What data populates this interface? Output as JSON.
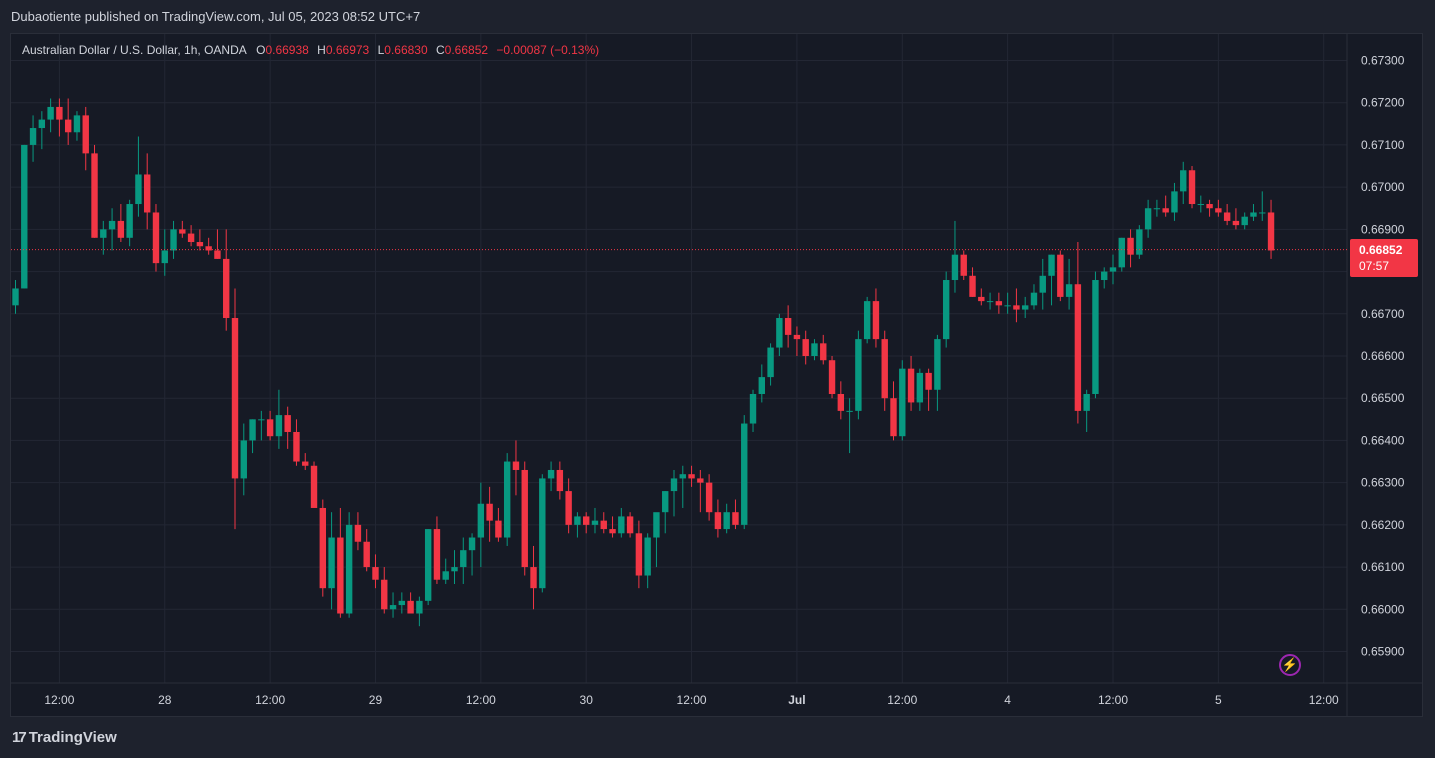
{
  "header": {
    "published": "Dubaotiente published on TradingView.com, Jul 05, 2023 08:52 UTC+7"
  },
  "legend": {
    "symbol": "Australian Dollar / U.S. Dollar, 1h, OANDA",
    "o_label": "O",
    "o": "0.66938",
    "h_label": "H",
    "h": "0.66973",
    "l_label": "L",
    "l": "0.66830",
    "c_label": "C",
    "c": "0.66852",
    "change": "−0.00087 (−0.13%)"
  },
  "price_tag": {
    "price": "0.66852",
    "countdown": "07:57"
  },
  "brand": {
    "logo": "17",
    "name": "TradingView"
  },
  "colors": {
    "up": "#089981",
    "down": "#f23645",
    "grid": "#232734",
    "axis_text": "#d1d4dc"
  },
  "icons": [
    "lightning-icon",
    "tradingview-logo-icon"
  ],
  "chart_data": {
    "type": "candlestick",
    "symbol": "AUDUSD",
    "timeframe": "1h",
    "y_ticks": [
      0.673,
      0.672,
      0.671,
      0.67,
      0.669,
      0.668,
      0.667,
      0.666,
      0.665,
      0.664,
      0.663,
      0.662,
      0.661,
      0.66,
      0.659
    ],
    "y_tick_labels": [
      "0.67300",
      "0.67200",
      "0.67100",
      "0.67000",
      "0.66900",
      "0.66800",
      "0.66700",
      "0.66600",
      "0.66500",
      "0.66400",
      "0.66300",
      "0.66200",
      "0.66100",
      "0.66000",
      "0.65900"
    ],
    "ylim": [
      0.6586,
      0.6741
    ],
    "x_ticks": [
      {
        "index": 5,
        "label": "12:00",
        "bold": false
      },
      {
        "index": 17,
        "label": "28",
        "bold": false
      },
      {
        "index": 29,
        "label": "12:00",
        "bold": false
      },
      {
        "index": 41,
        "label": "29",
        "bold": false
      },
      {
        "index": 53,
        "label": "12:00",
        "bold": false
      },
      {
        "index": 65,
        "label": "30",
        "bold": false
      },
      {
        "index": 77,
        "label": "12:00",
        "bold": false
      },
      {
        "index": 89,
        "label": "Jul",
        "bold": true
      },
      {
        "index": 101,
        "label": "12:00",
        "bold": false
      },
      {
        "index": 113,
        "label": "4",
        "bold": false
      },
      {
        "index": 125,
        "label": "12:00",
        "bold": false
      },
      {
        "index": 137,
        "label": "5",
        "bold": false
      },
      {
        "index": 149,
        "label": "12:00",
        "bold": false
      }
    ],
    "last_price": 0.66852,
    "candles": [
      [
        0.6672,
        0.6678,
        0.667,
        0.6676
      ],
      [
        0.6676,
        0.671,
        0.6676,
        0.671
      ],
      [
        0.671,
        0.6717,
        0.6706,
        0.6714
      ],
      [
        0.6714,
        0.6718,
        0.6709,
        0.6716
      ],
      [
        0.6716,
        0.6721,
        0.6713,
        0.6719
      ],
      [
        0.6719,
        0.6721,
        0.6712,
        0.6716
      ],
      [
        0.6716,
        0.6721,
        0.671,
        0.6713
      ],
      [
        0.6713,
        0.6718,
        0.6711,
        0.6717
      ],
      [
        0.6717,
        0.6719,
        0.6704,
        0.6708
      ],
      [
        0.6708,
        0.671,
        0.6688,
        0.6688
      ],
      [
        0.6688,
        0.6692,
        0.6684,
        0.669
      ],
      [
        0.669,
        0.6695,
        0.6685,
        0.6692
      ],
      [
        0.6692,
        0.6696,
        0.6687,
        0.6688
      ],
      [
        0.6688,
        0.6697,
        0.6686,
        0.6696
      ],
      [
        0.6696,
        0.6712,
        0.6693,
        0.6703
      ],
      [
        0.6703,
        0.6708,
        0.669,
        0.6694
      ],
      [
        0.6694,
        0.6696,
        0.668,
        0.6682
      ],
      [
        0.6682,
        0.669,
        0.6679,
        0.6685
      ],
      [
        0.6685,
        0.6692,
        0.6683,
        0.669
      ],
      [
        0.669,
        0.6692,
        0.6688,
        0.6689
      ],
      [
        0.6689,
        0.6691,
        0.6686,
        0.6687
      ],
      [
        0.6687,
        0.669,
        0.6685,
        0.6686
      ],
      [
        0.6686,
        0.6688,
        0.6684,
        0.6685
      ],
      [
        0.6685,
        0.669,
        0.6683,
        0.6683
      ],
      [
        0.6683,
        0.669,
        0.6666,
        0.6669
      ],
      [
        0.6669,
        0.6676,
        0.6619,
        0.6631
      ],
      [
        0.6631,
        0.6644,
        0.6627,
        0.664
      ],
      [
        0.664,
        0.6645,
        0.6637,
        0.6645
      ],
      [
        0.6645,
        0.6647,
        0.664,
        0.6645
      ],
      [
        0.6645,
        0.6647,
        0.664,
        0.6641
      ],
      [
        0.6641,
        0.6652,
        0.6638,
        0.6646
      ],
      [
        0.6646,
        0.6648,
        0.6638,
        0.6642
      ],
      [
        0.6642,
        0.6645,
        0.6634,
        0.6635
      ],
      [
        0.6635,
        0.6637,
        0.6633,
        0.6634
      ],
      [
        0.6634,
        0.6635,
        0.6625,
        0.6624
      ],
      [
        0.6624,
        0.6626,
        0.6603,
        0.6605
      ],
      [
        0.6605,
        0.6623,
        0.66,
        0.6617
      ],
      [
        0.6617,
        0.6624,
        0.6598,
        0.6599
      ],
      [
        0.6599,
        0.6623,
        0.6598,
        0.662
      ],
      [
        0.662,
        0.6623,
        0.6614,
        0.6616
      ],
      [
        0.6616,
        0.6619,
        0.6609,
        0.661
      ],
      [
        0.661,
        0.6613,
        0.6605,
        0.6607
      ],
      [
        0.6607,
        0.661,
        0.6599,
        0.66
      ],
      [
        0.66,
        0.6604,
        0.6598,
        0.6601
      ],
      [
        0.6601,
        0.6604,
        0.6599,
        0.6602
      ],
      [
        0.6602,
        0.6604,
        0.6599,
        0.6599
      ],
      [
        0.6599,
        0.6603,
        0.6596,
        0.6602
      ],
      [
        0.6602,
        0.6619,
        0.6601,
        0.6619
      ],
      [
        0.6619,
        0.6622,
        0.6606,
        0.6607
      ],
      [
        0.6607,
        0.6612,
        0.6606,
        0.6609
      ],
      [
        0.6609,
        0.6614,
        0.6606,
        0.661
      ],
      [
        0.661,
        0.6617,
        0.6606,
        0.6614
      ],
      [
        0.6614,
        0.6618,
        0.6608,
        0.6617
      ],
      [
        0.6617,
        0.663,
        0.661,
        0.6625
      ],
      [
        0.6625,
        0.6629,
        0.6616,
        0.6621
      ],
      [
        0.6621,
        0.6624,
        0.6616,
        0.6617
      ],
      [
        0.6617,
        0.6637,
        0.6615,
        0.6635
      ],
      [
        0.6635,
        0.664,
        0.6627,
        0.6633
      ],
      [
        0.6633,
        0.6635,
        0.6608,
        0.661
      ],
      [
        0.661,
        0.6615,
        0.66,
        0.6605
      ],
      [
        0.6605,
        0.6632,
        0.6604,
        0.6631
      ],
      [
        0.6631,
        0.6635,
        0.6628,
        0.6633
      ],
      [
        0.6633,
        0.6635,
        0.6626,
        0.6628
      ],
      [
        0.6628,
        0.6631,
        0.6618,
        0.662
      ],
      [
        0.662,
        0.6623,
        0.6617,
        0.6622
      ],
      [
        0.6622,
        0.6623,
        0.6618,
        0.662
      ],
      [
        0.662,
        0.6624,
        0.6618,
        0.6621
      ],
      [
        0.6621,
        0.6623,
        0.6618,
        0.6619
      ],
      [
        0.6619,
        0.6622,
        0.6617,
        0.6618
      ],
      [
        0.6618,
        0.6624,
        0.6617,
        0.6622
      ],
      [
        0.6622,
        0.6623,
        0.6617,
        0.6618
      ],
      [
        0.6618,
        0.6621,
        0.6605,
        0.6608
      ],
      [
        0.6608,
        0.6618,
        0.6605,
        0.6617
      ],
      [
        0.6617,
        0.6622,
        0.661,
        0.6623
      ],
      [
        0.6623,
        0.6628,
        0.6618,
        0.6628
      ],
      [
        0.6628,
        0.6633,
        0.6622,
        0.6631
      ],
      [
        0.6631,
        0.6634,
        0.6624,
        0.6632
      ],
      [
        0.6632,
        0.6634,
        0.6629,
        0.6631
      ],
      [
        0.6631,
        0.6633,
        0.6623,
        0.663
      ],
      [
        0.663,
        0.6632,
        0.6621,
        0.6623
      ],
      [
        0.6623,
        0.6626,
        0.6617,
        0.6619
      ],
      [
        0.6619,
        0.6625,
        0.6618,
        0.6623
      ],
      [
        0.6623,
        0.6626,
        0.6619,
        0.662
      ],
      [
        0.662,
        0.6646,
        0.6619,
        0.6644
      ],
      [
        0.6644,
        0.6652,
        0.6642,
        0.6651
      ],
      [
        0.6651,
        0.6658,
        0.6649,
        0.6655
      ],
      [
        0.6655,
        0.6663,
        0.6653,
        0.6662
      ],
      [
        0.6662,
        0.667,
        0.666,
        0.6669
      ],
      [
        0.6669,
        0.6672,
        0.6662,
        0.6665
      ],
      [
        0.6665,
        0.6667,
        0.666,
        0.6664
      ],
      [
        0.6664,
        0.6666,
        0.6658,
        0.666
      ],
      [
        0.666,
        0.6664,
        0.6659,
        0.6663
      ],
      [
        0.6663,
        0.6665,
        0.6658,
        0.6659
      ],
      [
        0.6659,
        0.666,
        0.665,
        0.6651
      ],
      [
        0.6651,
        0.6654,
        0.6645,
        0.6647
      ],
      [
        0.6647,
        0.665,
        0.6637,
        0.6647
      ],
      [
        0.6647,
        0.6666,
        0.6645,
        0.6664
      ],
      [
        0.6664,
        0.6674,
        0.6663,
        0.6673
      ],
      [
        0.6673,
        0.6676,
        0.6662,
        0.6664
      ],
      [
        0.6664,
        0.6666,
        0.6647,
        0.665
      ],
      [
        0.665,
        0.6654,
        0.664,
        0.6641
      ],
      [
        0.6641,
        0.6659,
        0.664,
        0.6657
      ],
      [
        0.6657,
        0.666,
        0.6647,
        0.6649
      ],
      [
        0.6649,
        0.6657,
        0.6647,
        0.6656
      ],
      [
        0.6656,
        0.6657,
        0.6647,
        0.6652
      ],
      [
        0.6652,
        0.6665,
        0.6647,
        0.6664
      ],
      [
        0.6664,
        0.668,
        0.6662,
        0.6678
      ],
      [
        0.6678,
        0.6692,
        0.6675,
        0.6684
      ],
      [
        0.6684,
        0.6685,
        0.6678,
        0.6679
      ],
      [
        0.6679,
        0.6681,
        0.6674,
        0.6674
      ],
      [
        0.6674,
        0.6676,
        0.6672,
        0.6673
      ],
      [
        0.6673,
        0.6675,
        0.6671,
        0.6673
      ],
      [
        0.6673,
        0.6675,
        0.667,
        0.6672
      ],
      [
        0.6672,
        0.6675,
        0.667,
        0.6672
      ],
      [
        0.6672,
        0.6676,
        0.6668,
        0.6671
      ],
      [
        0.6671,
        0.6674,
        0.6669,
        0.6672
      ],
      [
        0.6672,
        0.6677,
        0.6671,
        0.6675
      ],
      [
        0.6675,
        0.6683,
        0.6671,
        0.6679
      ],
      [
        0.6679,
        0.6684,
        0.6672,
        0.6684
      ],
      [
        0.6684,
        0.6685,
        0.6673,
        0.6674
      ],
      [
        0.6674,
        0.6683,
        0.6671,
        0.6677
      ],
      [
        0.6677,
        0.6687,
        0.6644,
        0.6647
      ],
      [
        0.6647,
        0.6652,
        0.6642,
        0.6651
      ],
      [
        0.6651,
        0.668,
        0.665,
        0.6678
      ],
      [
        0.6678,
        0.6681,
        0.6676,
        0.668
      ],
      [
        0.668,
        0.6684,
        0.6677,
        0.6681
      ],
      [
        0.6681,
        0.6688,
        0.668,
        0.6688
      ],
      [
        0.6688,
        0.669,
        0.6681,
        0.6684
      ],
      [
        0.6684,
        0.6691,
        0.6683,
        0.669
      ],
      [
        0.669,
        0.6697,
        0.6688,
        0.6695
      ],
      [
        0.6695,
        0.6697,
        0.6693,
        0.6695
      ],
      [
        0.6695,
        0.6698,
        0.6693,
        0.6694
      ],
      [
        0.6694,
        0.6701,
        0.6692,
        0.6699
      ],
      [
        0.6699,
        0.6706,
        0.6696,
        0.6704
      ],
      [
        0.6704,
        0.6705,
        0.6695,
        0.6696
      ],
      [
        0.6696,
        0.6698,
        0.6694,
        0.6696
      ],
      [
        0.6696,
        0.6697,
        0.6693,
        0.6695
      ],
      [
        0.6695,
        0.6697,
        0.6693,
        0.6694
      ],
      [
        0.6694,
        0.6696,
        0.6691,
        0.6692
      ],
      [
        0.6692,
        0.6695,
        0.669,
        0.6691
      ],
      [
        0.6691,
        0.6694,
        0.669,
        0.6693
      ],
      [
        0.6693,
        0.6696,
        0.6692,
        0.6694
      ],
      [
        0.6694,
        0.6699,
        0.6692,
        0.6694
      ],
      [
        0.6694,
        0.6697,
        0.6683,
        0.6685
      ]
    ]
  }
}
